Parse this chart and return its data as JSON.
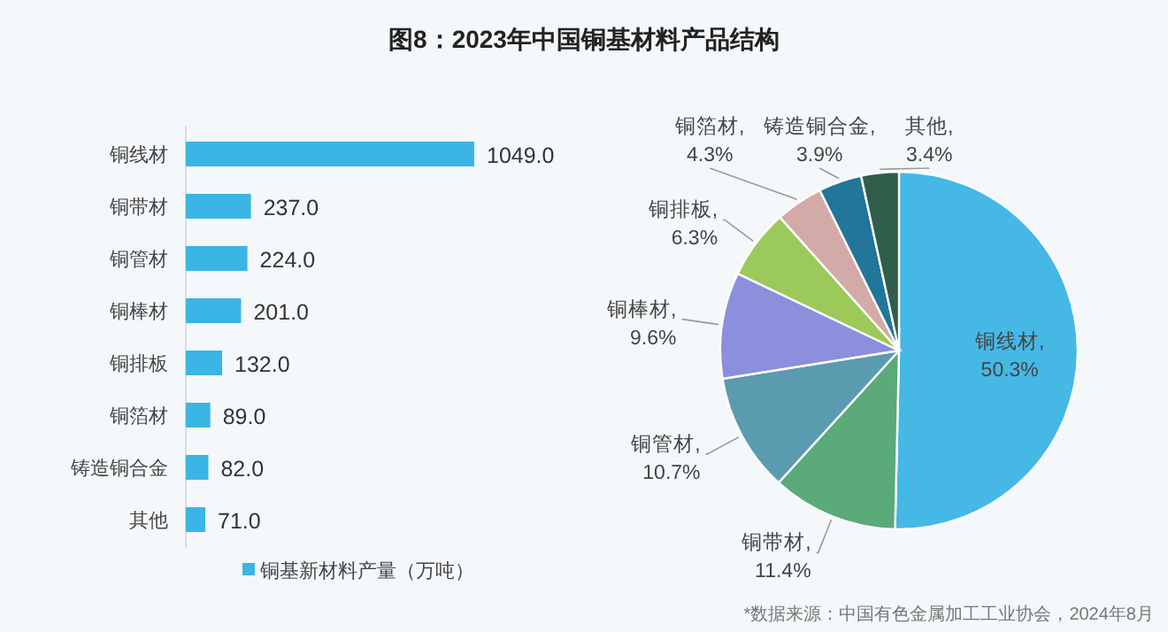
{
  "chart_data": [
    {
      "type": "bar",
      "orientation": "horizontal",
      "title": "图8：2023年中国铜基材料产品结构",
      "categories": [
        "铜线材",
        "铜带材",
        "铜管材",
        "铜棒材",
        "铜排板",
        "铜箔材",
        "铸造铜合金",
        "其他"
      ],
      "series": [
        {
          "name": "铜基新材料产量（万吨）",
          "color": "#3bb5e4",
          "values": [
            1049,
            237,
            224,
            201,
            132,
            89,
            82,
            71
          ],
          "value_labels": [
            "1049.0",
            "237.0",
            "224.0",
            "201.0",
            "132.0",
            "89.0",
            "82.0",
            "71.0"
          ]
        }
      ],
      "legend": "bottom"
    },
    {
      "type": "pie",
      "categories": [
        "铜线材",
        "铜带材",
        "铜管材",
        "铜棒材",
        "铜排板",
        "铜箔材",
        "铸造铜合金",
        "其他"
      ],
      "values": [
        50.3,
        11.4,
        10.7,
        9.6,
        6.3,
        4.3,
        3.9,
        3.4
      ],
      "colors": [
        "#45b8e6",
        "#5aaa7a",
        "#5b9bb0",
        "#8b8fdc",
        "#9bc95a",
        "#d3aaa8",
        "#21769a",
        "#2f5e4a"
      ],
      "value_labels": [
        ",50.3%",
        ",11.4%",
        ",10.7%",
        ",9.6%",
        ",6.3%",
        ",4.3%",
        ",3.9%",
        ",3.4%"
      ],
      "annotations": [
        "*数据来源：中国有色金属加工工业协会，2024年8月"
      ]
    }
  ]
}
